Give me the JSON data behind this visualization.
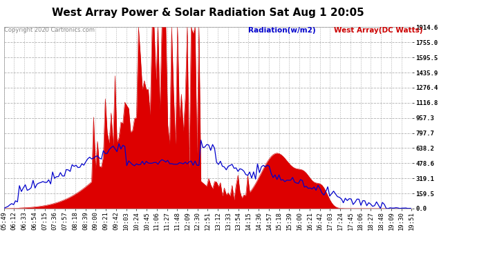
{
  "title": "West Array Power & Solar Radiation Sat Aug 1 20:05",
  "copyright": "Copyright 2020 Cartronics.com",
  "legend_radiation": "Radiation(w/m2)",
  "legend_west": "West Array(DC Watts)",
  "y_ticks": [
    0.0,
    159.5,
    319.1,
    478.6,
    638.2,
    797.7,
    957.3,
    1116.8,
    1276.4,
    1435.9,
    1595.5,
    1755.0,
    1914.6
  ],
  "ymax": 1914.6,
  "ymin": 0.0,
  "x_labels": [
    "05:49",
    "06:12",
    "06:33",
    "06:54",
    "07:15",
    "07:36",
    "07:57",
    "08:18",
    "08:39",
    "09:00",
    "09:21",
    "09:42",
    "10:03",
    "10:24",
    "10:45",
    "11:06",
    "11:27",
    "11:48",
    "12:09",
    "12:30",
    "12:51",
    "13:12",
    "13:33",
    "13:54",
    "14:15",
    "14:36",
    "14:57",
    "15:18",
    "15:39",
    "16:00",
    "16:21",
    "16:42",
    "17:03",
    "17:24",
    "17:45",
    "18:06",
    "18:27",
    "18:48",
    "19:09",
    "19:30",
    "19:51"
  ],
  "bg_color": "#ffffff",
  "plot_bg_color": "#ffffff",
  "grid_color": "#b0b0b0",
  "radiation_color": "#0000cc",
  "west_array_color": "#cc0000",
  "west_array_fill": "#dd0000",
  "title_fontsize": 11,
  "tick_fontsize": 6.5,
  "legend_fontsize": 7.5
}
